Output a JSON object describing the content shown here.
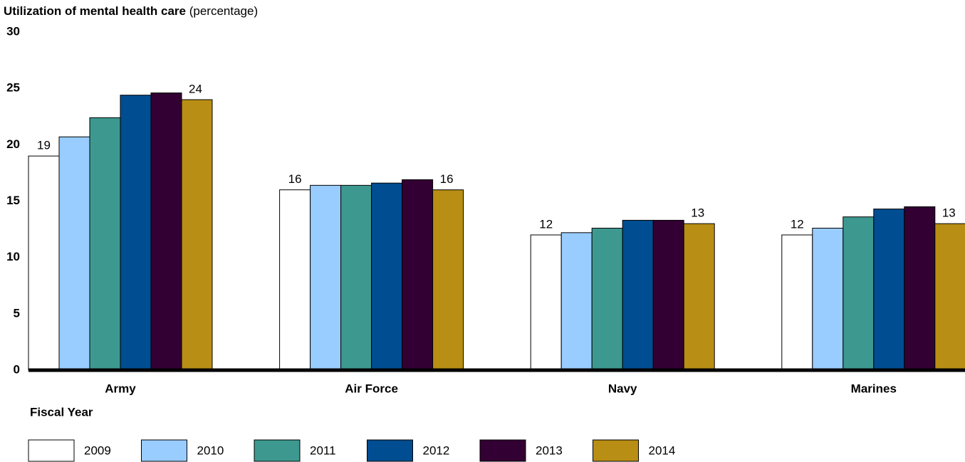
{
  "chart_data": {
    "type": "bar",
    "title": "Utilization of mental health care",
    "subtitle": "(percentage)",
    "legend_title": "Fiscal Year",
    "categories": [
      "Army",
      "Air Force",
      "Navy",
      "Marines"
    ],
    "series": [
      {
        "name": "2009",
        "color": "#ffffff",
        "values": [
          19,
          16,
          12,
          12
        ],
        "data_labels": true
      },
      {
        "name": "2010",
        "color": "#99ccff",
        "values": [
          20.7,
          16.4,
          12.2,
          12.6
        ]
      },
      {
        "name": "2011",
        "color": "#3d9990",
        "values": [
          22.4,
          16.4,
          12.6,
          13.6
        ]
      },
      {
        "name": "2012",
        "color": "#004d91",
        "values": [
          24.4,
          16.6,
          13.3,
          14.3
        ]
      },
      {
        "name": "2013",
        "color": "#330033",
        "values": [
          24.6,
          16.9,
          13.3,
          14.5
        ]
      },
      {
        "name": "2014",
        "color": "#b88e14",
        "values": [
          24,
          16,
          13,
          13
        ],
        "data_labels": true
      }
    ],
    "ylim": [
      0,
      30
    ],
    "yticks": [
      0,
      5,
      10,
      15,
      20,
      25,
      30
    ],
    "grid": false
  }
}
